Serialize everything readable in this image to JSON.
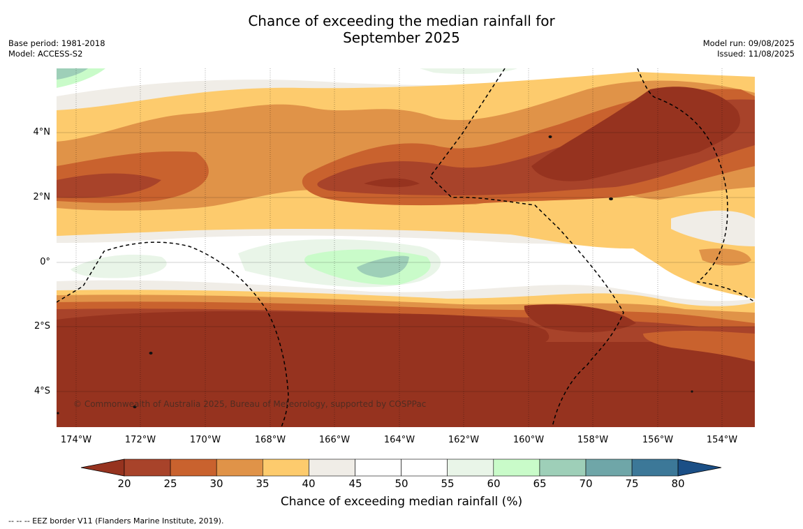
{
  "title": {
    "line1": "Chance of exceeding the median rainfall for",
    "line2": "September 2025"
  },
  "meta_left": {
    "base_period": "Base period: 1981-2018",
    "model": "Model: ACCESS-S2"
  },
  "meta_right": {
    "model_run": "Model run: 09/08/2025",
    "issued": "Issued: 11/08/2025"
  },
  "map": {
    "copyright": "© Commonwealth of Australia 2025, Bureau of Meteorology, supported by COSPPac",
    "lon_ticks": [
      "174°W",
      "172°W",
      "170°W",
      "168°W",
      "166°W",
      "164°W",
      "162°W",
      "160°W",
      "158°W",
      "156°W",
      "154°W"
    ],
    "lat_ticks": [
      "4°N",
      "2°N",
      "0°",
      "2°S",
      "4°S"
    ]
  },
  "colorbar": {
    "title": "Chance of exceeding median rainfall (%)",
    "labels": [
      "20",
      "25",
      "30",
      "35",
      "40",
      "45",
      "50",
      "55",
      "60",
      "65",
      "70",
      "75",
      "80"
    ],
    "colors": [
      "#a8432a",
      "#c9622e",
      "#e09348",
      "#fdcb6d",
      "#f0ede7",
      "#ffffff",
      "#ffffff",
      "#e9f5e8",
      "#c9fbc9",
      "#9ecfb8",
      "#6fa6a8",
      "#3c7898"
    ],
    "under_color": "#96331f",
    "over_color": "#1b4f86"
  },
  "footnote": "--  --  -- EEZ border V11 (Flanders Marine Institute, 2019)."
}
